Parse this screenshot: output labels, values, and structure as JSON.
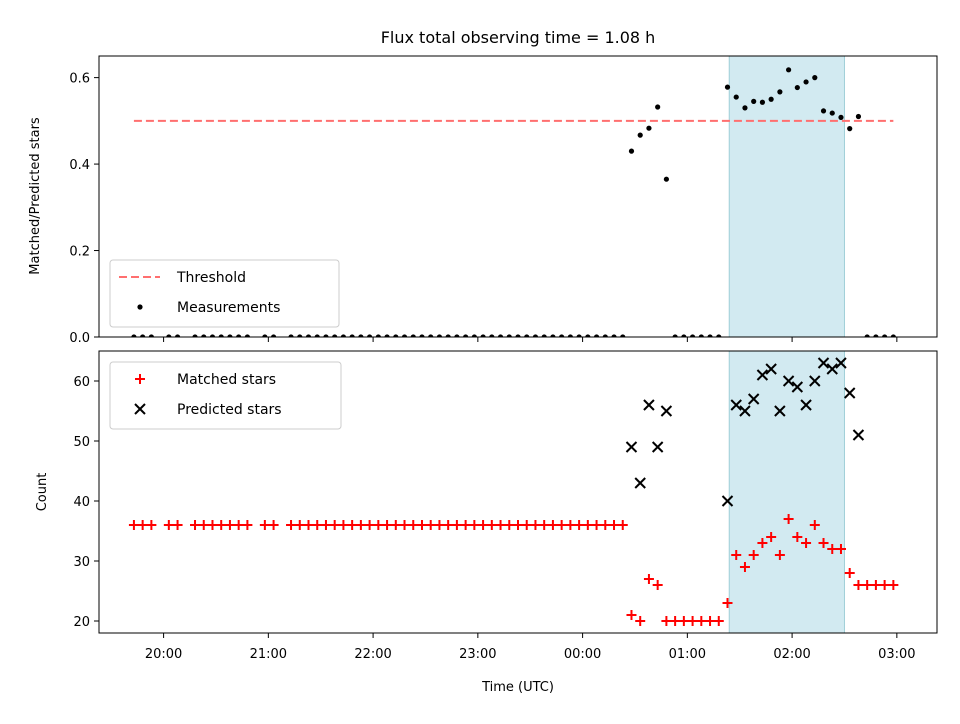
{
  "chart_data": [
    {
      "type": "scatter",
      "title": "Flux total observing time = 1.08 h",
      "ylabel": "Matched/Predicted stars",
      "xlabel": "",
      "ylim": [
        0.0,
        0.65
      ],
      "yticks": [
        "0.0",
        "0.2",
        "0.4",
        "0.6"
      ],
      "grid": false,
      "legend": {
        "placement": "lower-left",
        "entries": [
          "Threshold",
          "Measurements"
        ]
      },
      "highlight_span": {
        "x": [
          "01:24",
          "02:30"
        ],
        "color": "#add8e6"
      },
      "threshold": {
        "name": "Threshold",
        "y": 0.5,
        "x_range": [
          "19:43",
          "02:58"
        ],
        "color": "#ff6f6f",
        "style": "dashed"
      },
      "series": [
        {
          "name": "Measurements",
          "color": "#000000",
          "marker": "dot",
          "points": [
            [
              "19:43",
              0
            ],
            [
              "19:48",
              0
            ],
            [
              "19:53",
              0
            ],
            [
              "20:03",
              0
            ],
            [
              "20:08",
              0
            ],
            [
              "20:18",
              0
            ],
            [
              "20:23",
              0
            ],
            [
              "20:28",
              0
            ],
            [
              "20:33",
              0
            ],
            [
              "20:38",
              0
            ],
            [
              "20:43",
              0
            ],
            [
              "20:48",
              0
            ],
            [
              "20:58",
              0
            ],
            [
              "21:03",
              0
            ],
            [
              "21:13",
              0
            ],
            [
              "21:18",
              0
            ],
            [
              "21:23",
              0
            ],
            [
              "21:28",
              0
            ],
            [
              "21:33",
              0
            ],
            [
              "21:38",
              0
            ],
            [
              "21:43",
              0
            ],
            [
              "21:48",
              0
            ],
            [
              "21:53",
              0
            ],
            [
              "21:58",
              0
            ],
            [
              "22:03",
              0
            ],
            [
              "22:08",
              0
            ],
            [
              "22:13",
              0
            ],
            [
              "22:18",
              0
            ],
            [
              "22:23",
              0
            ],
            [
              "22:28",
              0
            ],
            [
              "22:33",
              0
            ],
            [
              "22:38",
              0
            ],
            [
              "22:43",
              0
            ],
            [
              "22:48",
              0
            ],
            [
              "22:53",
              0
            ],
            [
              "22:58",
              0
            ],
            [
              "23:03",
              0
            ],
            [
              "23:08",
              0
            ],
            [
              "23:13",
              0
            ],
            [
              "23:18",
              0
            ],
            [
              "23:23",
              0
            ],
            [
              "23:28",
              0
            ],
            [
              "23:33",
              0
            ],
            [
              "23:38",
              0
            ],
            [
              "23:43",
              0
            ],
            [
              "23:48",
              0
            ],
            [
              "23:53",
              0
            ],
            [
              "23:58",
              0
            ],
            [
              "00:03",
              0
            ],
            [
              "00:08",
              0
            ],
            [
              "00:13",
              0
            ],
            [
              "00:18",
              0
            ],
            [
              "00:23",
              0
            ],
            [
              "00:28",
              0.43
            ],
            [
              "00:33",
              0.467
            ],
            [
              "00:38",
              0.483
            ],
            [
              "00:43",
              0.532
            ],
            [
              "00:48",
              0.365
            ],
            [
              "00:53",
              0
            ],
            [
              "00:58",
              0
            ],
            [
              "01:03",
              0
            ],
            [
              "01:08",
              0
            ],
            [
              "01:13",
              0
            ],
            [
              "01:18",
              0
            ],
            [
              "01:23",
              0.578
            ],
            [
              "01:28",
              0.555
            ],
            [
              "01:33",
              0.53
            ],
            [
              "01:38",
              0.545
            ],
            [
              "01:43",
              0.543
            ],
            [
              "01:48",
              0.55
            ],
            [
              "01:53",
              0.567
            ],
            [
              "01:58",
              0.618
            ],
            [
              "02:03",
              0.577
            ],
            [
              "02:08",
              0.59
            ],
            [
              "02:13",
              0.6
            ],
            [
              "02:18",
              0.523
            ],
            [
              "02:23",
              0.518
            ],
            [
              "02:28",
              0.508
            ],
            [
              "02:33",
              0.482
            ],
            [
              "02:38",
              0.51
            ],
            [
              "02:43",
              0
            ],
            [
              "02:48",
              0
            ],
            [
              "02:53",
              0
            ],
            [
              "02:58",
              0
            ]
          ]
        }
      ]
    },
    {
      "type": "scatter",
      "title": "",
      "ylabel": "Count",
      "xlabel": "Time (UTC)",
      "ylim": [
        18,
        65
      ],
      "yticks": [
        "20",
        "30",
        "40",
        "50",
        "60"
      ],
      "xlim": [
        "19:23",
        "03:23"
      ],
      "xticks": [
        "20:00",
        "21:00",
        "22:00",
        "23:00",
        "00:00",
        "01:00",
        "02:00",
        "03:00"
      ],
      "grid": false,
      "legend": {
        "placement": "top-left",
        "entries": [
          "Matched stars",
          "Predicted stars"
        ]
      },
      "highlight_span": {
        "x": [
          "01:24",
          "02:30"
        ],
        "color": "#add8e6"
      },
      "series": [
        {
          "name": "Matched stars",
          "color": "#ff0000",
          "marker": "plus",
          "points": [
            [
              "19:43",
              36
            ],
            [
              "19:48",
              36
            ],
            [
              "19:53",
              36
            ],
            [
              "20:03",
              36
            ],
            [
              "20:08",
              36
            ],
            [
              "20:18",
              36
            ],
            [
              "20:23",
              36
            ],
            [
              "20:28",
              36
            ],
            [
              "20:33",
              36
            ],
            [
              "20:38",
              36
            ],
            [
              "20:43",
              36
            ],
            [
              "20:48",
              36
            ],
            [
              "20:58",
              36
            ],
            [
              "21:03",
              36
            ],
            [
              "21:13",
              36
            ],
            [
              "21:18",
              36
            ],
            [
              "21:23",
              36
            ],
            [
              "21:28",
              36
            ],
            [
              "21:33",
              36
            ],
            [
              "21:38",
              36
            ],
            [
              "21:43",
              36
            ],
            [
              "21:48",
              36
            ],
            [
              "21:53",
              36
            ],
            [
              "21:58",
              36
            ],
            [
              "22:03",
              36
            ],
            [
              "22:08",
              36
            ],
            [
              "22:13",
              36
            ],
            [
              "22:18",
              36
            ],
            [
              "22:23",
              36
            ],
            [
              "22:28",
              36
            ],
            [
              "22:33",
              36
            ],
            [
              "22:38",
              36
            ],
            [
              "22:43",
              36
            ],
            [
              "22:48",
              36
            ],
            [
              "22:53",
              36
            ],
            [
              "22:58",
              36
            ],
            [
              "23:03",
              36
            ],
            [
              "23:08",
              36
            ],
            [
              "23:13",
              36
            ],
            [
              "23:18",
              36
            ],
            [
              "23:23",
              36
            ],
            [
              "23:28",
              36
            ],
            [
              "23:33",
              36
            ],
            [
              "23:38",
              36
            ],
            [
              "23:43",
              36
            ],
            [
              "23:48",
              36
            ],
            [
              "23:53",
              36
            ],
            [
              "23:58",
              36
            ],
            [
              "00:03",
              36
            ],
            [
              "00:08",
              36
            ],
            [
              "00:13",
              36
            ],
            [
              "00:18",
              36
            ],
            [
              "00:23",
              36
            ],
            [
              "00:28",
              21
            ],
            [
              "00:33",
              20
            ],
            [
              "00:38",
              27
            ],
            [
              "00:43",
              26
            ],
            [
              "00:48",
              20
            ],
            [
              "00:53",
              20
            ],
            [
              "00:58",
              20
            ],
            [
              "01:03",
              20
            ],
            [
              "01:08",
              20
            ],
            [
              "01:13",
              20
            ],
            [
              "01:18",
              20
            ],
            [
              "01:23",
              23
            ],
            [
              "01:28",
              31
            ],
            [
              "01:33",
              29
            ],
            [
              "01:38",
              31
            ],
            [
              "01:43",
              33
            ],
            [
              "01:48",
              34
            ],
            [
              "01:53",
              31
            ],
            [
              "01:58",
              37
            ],
            [
              "02:03",
              34
            ],
            [
              "02:08",
              33
            ],
            [
              "02:13",
              36
            ],
            [
              "02:18",
              33
            ],
            [
              "02:23",
              32
            ],
            [
              "02:28",
              32
            ],
            [
              "02:33",
              28
            ],
            [
              "02:38",
              26
            ],
            [
              "02:43",
              26
            ],
            [
              "02:48",
              26
            ],
            [
              "02:53",
              26
            ],
            [
              "02:58",
              26
            ]
          ]
        },
        {
          "name": "Predicted stars",
          "color": "#000000",
          "marker": "x",
          "points": [
            [
              "00:28",
              49
            ],
            [
              "00:33",
              43
            ],
            [
              "00:38",
              56
            ],
            [
              "00:43",
              49
            ],
            [
              "00:48",
              55
            ],
            [
              "01:23",
              40
            ],
            [
              "01:28",
              56
            ],
            [
              "01:33",
              55
            ],
            [
              "01:38",
              57
            ],
            [
              "01:43",
              61
            ],
            [
              "01:48",
              62
            ],
            [
              "01:53",
              55
            ],
            [
              "01:58",
              60
            ],
            [
              "02:03",
              59
            ],
            [
              "02:08",
              56
            ],
            [
              "02:13",
              60
            ],
            [
              "02:18",
              63
            ],
            [
              "02:23",
              62
            ],
            [
              "02:28",
              63
            ],
            [
              "02:33",
              58
            ],
            [
              "02:38",
              51
            ]
          ]
        }
      ]
    }
  ]
}
